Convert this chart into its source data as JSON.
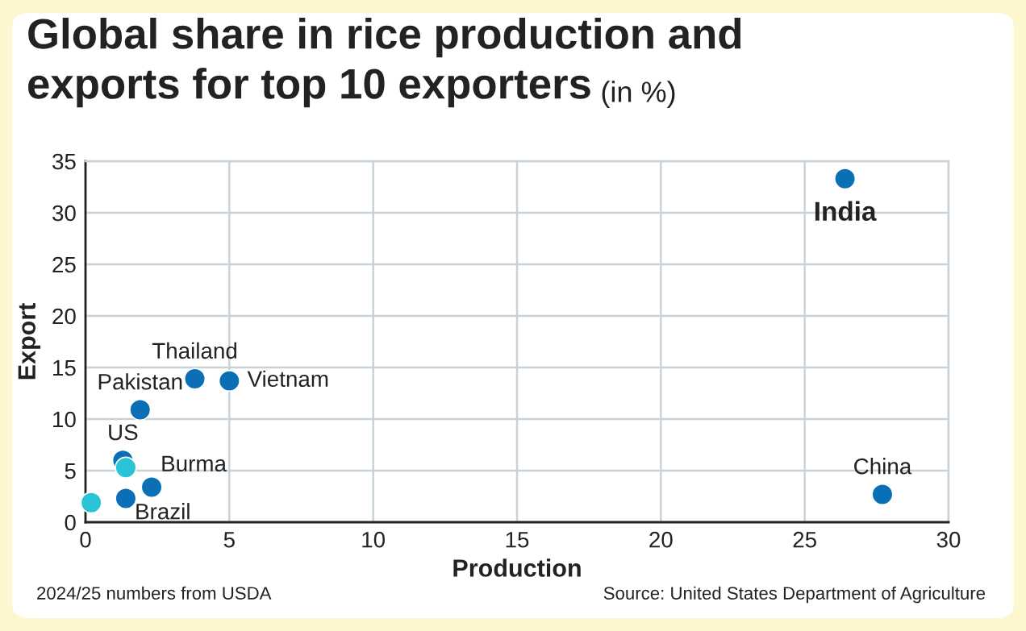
{
  "chart_data": {
    "type": "scatter",
    "title": "Global share in rice production and exports for top 10 exporters",
    "subtitle": "(in %)",
    "xlabel": "Production",
    "ylabel": "Export",
    "series": [
      {
        "color": "#2bc3d6",
        "x": [
          1.4,
          0.2
        ],
        "values": [
          5.3,
          1.9
        ]
      },
      {
        "color": "#0a6fb5",
        "x": [
          26.4,
          27.7,
          3.8,
          5.0,
          1.9,
          1.3,
          2.3,
          1.4
        ],
        "values": [
          33.3,
          2.7,
          13.9,
          13.7,
          10.9,
          6.0,
          3.4,
          2.3
        ]
      }
    ],
    "annotations": [
      {
        "text": "India",
        "x": 26.4,
        "y": 33.3
      },
      {
        "text": "China",
        "x": 27.7,
        "y": 2.7
      },
      {
        "text": "Thailand",
        "x": 3.8,
        "y": 13.9
      },
      {
        "text": "Vietnam",
        "x": 5.0,
        "y": 13.7
      },
      {
        "text": "Pakistan",
        "x": 1.9,
        "y": 10.9
      },
      {
        "text": "US",
        "x": 1.3,
        "y": 6.0
      },
      {
        "text": "Burma",
        "x": 2.3,
        "y": 3.4
      },
      {
        "text": "Brazil",
        "x": 1.4,
        "y": 2.3
      },
      "2024/25 numbers from USDA",
      "Source: United States Department of Agriculture"
    ],
    "xlim": [
      0,
      30
    ],
    "xticks": [
      0,
      5,
      10,
      15,
      20,
      25,
      30
    ],
    "ylim": [
      0,
      35
    ],
    "yticks": [
      0,
      5,
      10,
      15,
      20,
      25,
      30,
      35
    ],
    "grid": true,
    "marker": "circle"
  }
}
